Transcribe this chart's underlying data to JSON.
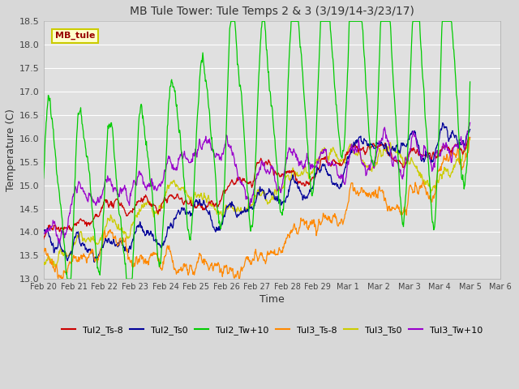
{
  "title": "MB Tule Tower: Tule Temps 2 & 3 (3/19/14-3/23/17)",
  "xlabel": "Time",
  "ylabel": "Temperature (C)",
  "ylim": [
    13.0,
    18.5
  ],
  "xlim": [
    0,
    14
  ],
  "background_color": "#d8d8d8",
  "plot_bg_color": "#e0e0e0",
  "grid_color": "#ffffff",
  "series": {
    "Tul2_Ts-8": {
      "color": "#cc0000"
    },
    "Tul2_Ts0": {
      "color": "#000099"
    },
    "Tul2_Tw+10": {
      "color": "#00cc00"
    },
    "Tul3_Ts-8": {
      "color": "#ff8800"
    },
    "Tul3_Ts0": {
      "color": "#cccc00"
    },
    "Tul3_Tw+10": {
      "color": "#9900cc"
    }
  },
  "xtick_labels": [
    "Feb 20",
    "Feb 21",
    "Feb 22",
    "Feb 23",
    "Feb 24",
    "Feb 25",
    "Feb 26",
    "Feb 27",
    "Feb 28",
    "Feb 29",
    "Mar 1",
    "Mar 2",
    "Mar 3",
    "Mar 4",
    "Mar 5",
    "Mar 6"
  ],
  "ytick_values": [
    13.0,
    13.5,
    14.0,
    14.5,
    15.0,
    15.5,
    16.0,
    16.5,
    17.0,
    17.5,
    18.0,
    18.5
  ],
  "annotation_text": "MB_tule",
  "annotation_color": "#990000",
  "annotation_bg": "#ffffcc",
  "annotation_border": "#cccc00"
}
